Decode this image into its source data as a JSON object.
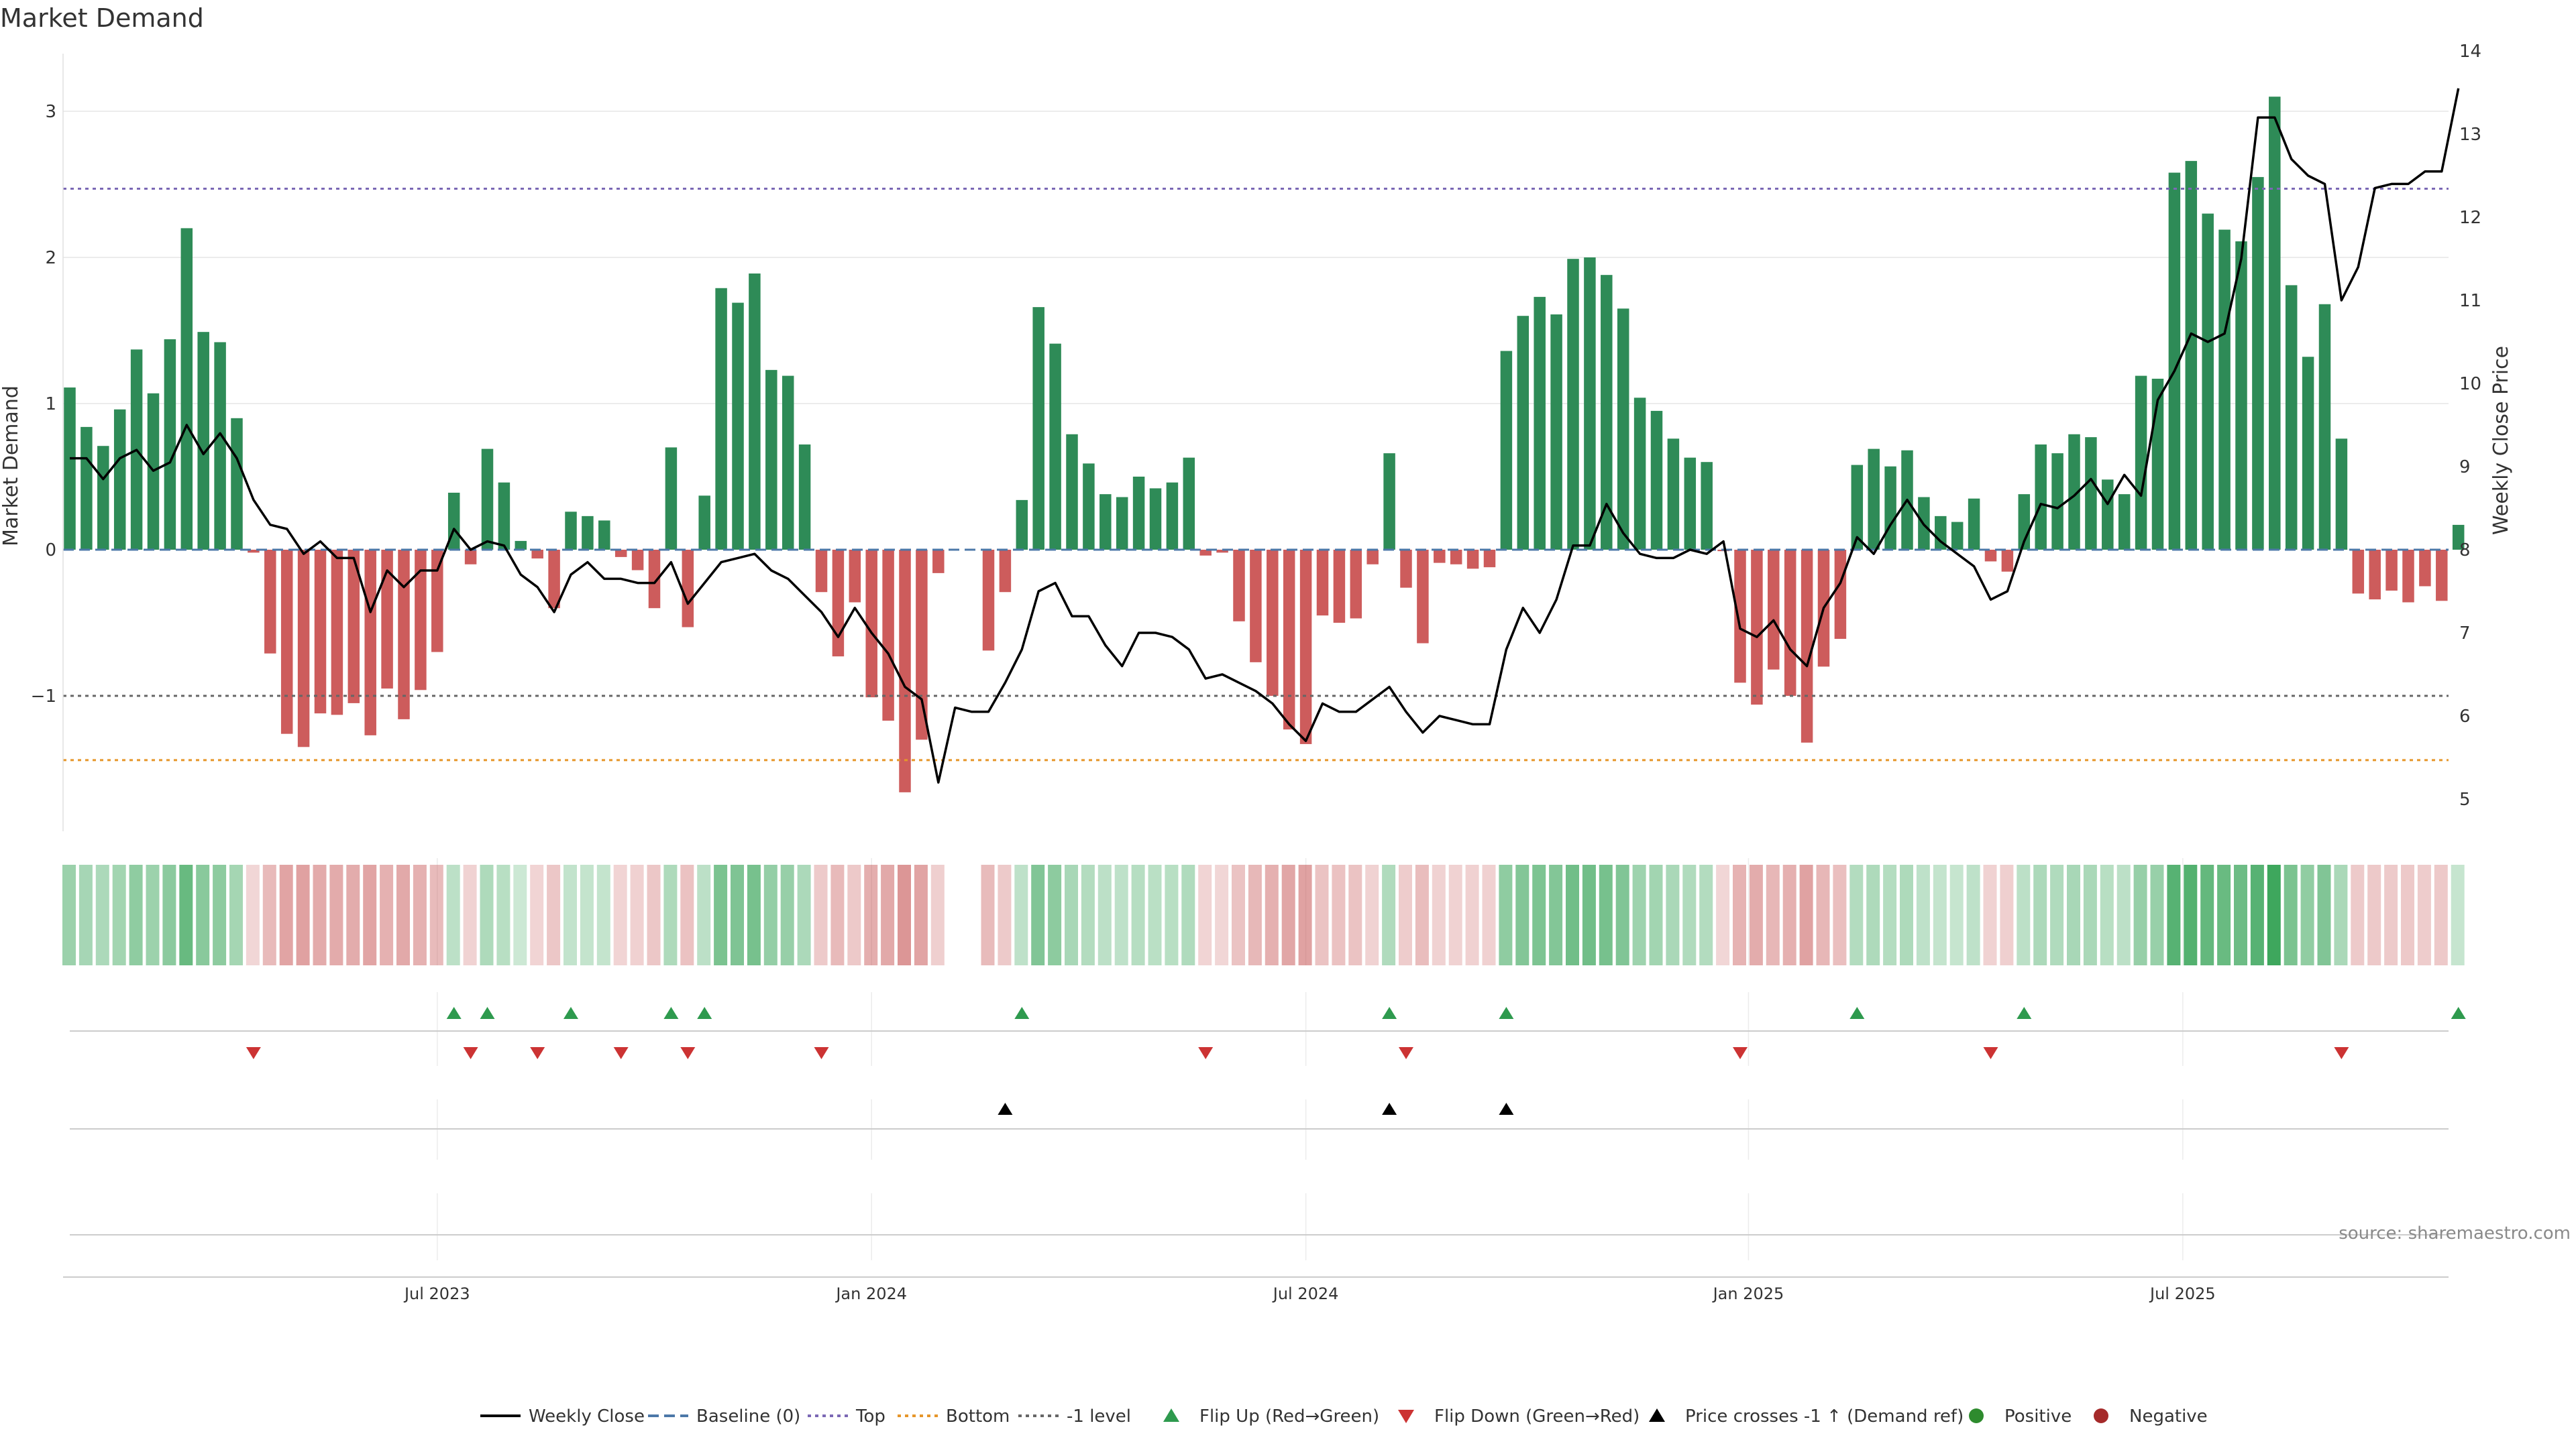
{
  "chart_data": {
    "type": "bar",
    "title": "Market Demand",
    "ylabel": "Market Demand",
    "ylabel_right": "Weekly Close Price",
    "source": "source: sharemaestro.com",
    "ylim": [
      -1.9,
      3.4
    ],
    "ylim_right": [
      4.7,
      14.1
    ],
    "yticks": [
      {
        "value": 3,
        "label": "3"
      },
      {
        "value": 2,
        "label": "2"
      },
      {
        "value": 1,
        "label": "1"
      },
      {
        "value": 0,
        "label": "0"
      },
      {
        "value": -1,
        "label": "−1"
      }
    ],
    "yticks_right": [
      {
        "value": 14,
        "label": "14"
      },
      {
        "value": 13,
        "label": "13"
      },
      {
        "value": 12,
        "label": "12"
      },
      {
        "value": 11,
        "label": "11"
      },
      {
        "value": 10,
        "label": "10"
      },
      {
        "value": 9,
        "label": "9"
      },
      {
        "value": 8,
        "label": "8"
      },
      {
        "value": 7,
        "label": "7"
      },
      {
        "value": 6,
        "label": "6"
      },
      {
        "value": 5,
        "label": "5"
      }
    ],
    "xticks": [
      {
        "index": 22,
        "label": "Jul 2023"
      },
      {
        "index": 48,
        "label": "Jan 2024"
      },
      {
        "index": 74,
        "label": "Jul 2024"
      },
      {
        "index": 100.5,
        "label": "Jan 2025"
      },
      {
        "index": 126.5,
        "label": "Jul 2025"
      }
    ],
    "reference_lines": {
      "baseline": 0,
      "top": 2.47,
      "bottom": -1.44,
      "minus_one_level": -1
    },
    "demand": [
      1.11,
      0.84,
      0.71,
      0.96,
      1.37,
      1.07,
      1.44,
      2.2,
      1.49,
      1.42,
      0.9,
      -0.02,
      -0.71,
      -1.26,
      -1.35,
      -1.12,
      -1.13,
      -1.05,
      -1.27,
      -0.95,
      -1.16,
      -0.96,
      -0.7,
      0.39,
      -0.1,
      0.69,
      0.46,
      0.06,
      -0.06,
      -0.4,
      0.26,
      0.23,
      0.2,
      -0.05,
      -0.14,
      -0.4,
      0.7,
      -0.53,
      0.37,
      1.79,
      1.69,
      1.89,
      1.23,
      1.19,
      0.72,
      -0.29,
      -0.73,
      -0.36,
      -1.01,
      -1.17,
      -1.66,
      -1.3,
      -0.16,
      0,
      0,
      -0.69,
      -0.29,
      0.34,
      1.66,
      1.41,
      0.79,
      0.59,
      0.38,
      0.36,
      0.5,
      0.42,
      0.46,
      0.63,
      -0.04,
      -0.02,
      -0.49,
      -0.77,
      -1.0,
      -1.23,
      -1.33,
      -0.45,
      -0.5,
      -0.47,
      -0.1,
      0.66,
      -0.26,
      -0.64,
      -0.09,
      -0.1,
      -0.13,
      -0.12,
      1.36,
      1.6,
      1.73,
      1.61,
      1.99,
      2.0,
      1.88,
      1.65,
      1.04,
      0.95,
      0.76,
      0.63,
      0.6,
      -0.01,
      -0.91,
      -1.06,
      -0.82,
      -1.0,
      -1.32,
      -0.8,
      -0.61,
      0.58,
      0.69,
      0.57,
      0.68,
      0.36,
      0.23,
      0.19,
      0.35,
      -0.08,
      -0.15,
      0.38,
      0.72,
      0.66,
      0.79,
      0.77,
      0.48,
      0.38,
      1.19,
      1.17,
      2.58,
      2.66,
      2.3,
      2.19,
      2.11,
      2.55,
      3.1,
      1.81,
      1.32,
      1.68,
      0.76,
      -0.3,
      -0.34,
      -0.28,
      -0.36,
      -0.25,
      -0.35,
      0.17
    ],
    "weekly_close": [
      9.1,
      9.1,
      8.85,
      9.1,
      9.2,
      8.95,
      9.05,
      9.5,
      9.15,
      9.4,
      9.1,
      8.6,
      8.3,
      8.25,
      7.95,
      8.1,
      7.9,
      7.9,
      7.25,
      7.75,
      7.55,
      7.75,
      7.75,
      8.25,
      8.0,
      8.1,
      8.05,
      7.7,
      7.55,
      7.25,
      7.7,
      7.85,
      7.65,
      7.65,
      7.6,
      7.6,
      7.85,
      7.35,
      7.6,
      7.85,
      7.9,
      7.95,
      7.75,
      7.65,
      7.45,
      7.25,
      6.95,
      7.3,
      7.0,
      6.75,
      6.35,
      6.2,
      5.2,
      6.1,
      6.05,
      6.05,
      6.4,
      6.8,
      7.5,
      7.6,
      7.2,
      7.2,
      6.85,
      6.6,
      7.0,
      7.0,
      6.95,
      6.8,
      6.45,
      6.5,
      6.4,
      6.3,
      6.15,
      5.9,
      5.7,
      6.15,
      6.05,
      6.05,
      6.2,
      6.35,
      6.05,
      5.8,
      6.0,
      5.95,
      5.9,
      5.9,
      6.8,
      7.3,
      7.0,
      7.4,
      8.05,
      8.05,
      8.55,
      8.2,
      7.95,
      7.9,
      7.9,
      8.0,
      7.95,
      8.1,
      7.05,
      6.95,
      7.15,
      6.8,
      6.6,
      7.3,
      7.6,
      8.15,
      7.95,
      8.3,
      8.6,
      8.3,
      8.1,
      7.95,
      7.8,
      7.4,
      7.5,
      8.1,
      8.55,
      8.5,
      8.65,
      8.85,
      8.55,
      8.9,
      8.65,
      9.8,
      10.15,
      10.6,
      10.5,
      10.6,
      11.5,
      13.2,
      13.2,
      12.7,
      12.5,
      12.4,
      11.0,
      11.4,
      12.35,
      12.4,
      12.4,
      12.55,
      12.55,
      13.55
    ],
    "flip_up_indices": [
      23,
      25,
      30,
      36,
      38,
      57,
      79,
      86,
      107,
      117,
      143
    ],
    "flip_down_indices": [
      11,
      24,
      28,
      33,
      37,
      45,
      68,
      80,
      100,
      115,
      136
    ],
    "price_cross_indices": [
      56,
      79,
      86
    ],
    "legend": [
      {
        "label": "Weekly Close",
        "kind": "line-solid",
        "color": "#000000"
      },
      {
        "label": "Baseline (0)",
        "kind": "line-dash",
        "color": "#4c78a8"
      },
      {
        "label": "Top",
        "kind": "line-dot",
        "color": "#7b68b5"
      },
      {
        "label": "Bottom",
        "kind": "line-dot",
        "color": "#e6962a"
      },
      {
        "label": "-1 level",
        "kind": "line-dot",
        "color": "#666666"
      },
      {
        "label": "Flip Up (Red→Green)",
        "kind": "tri-up",
        "color": "#2e9a4e"
      },
      {
        "label": "Flip Down (Green→Red)",
        "kind": "tri-down",
        "color": "#cc3333"
      },
      {
        "label": "Price crosses -1 ↑ (Demand ref)",
        "kind": "tri-up",
        "color": "#000000"
      },
      {
        "label": "Positive",
        "kind": "dot",
        "color": "#2e8b2e"
      },
      {
        "label": "Negative",
        "kind": "dot",
        "color": "#a52a2a"
      }
    ]
  },
  "colors": {
    "positive_bar": "#2e8b57",
    "negative_bar": "#cd5c5c",
    "flip_up": "#2e9a4e",
    "flip_down": "#cc3333",
    "price_line": "#000000",
    "baseline": "#4c78a8",
    "top_line": "#7b68b5",
    "bottom_line": "#e6962a",
    "minus_one_line": "#666666"
  }
}
